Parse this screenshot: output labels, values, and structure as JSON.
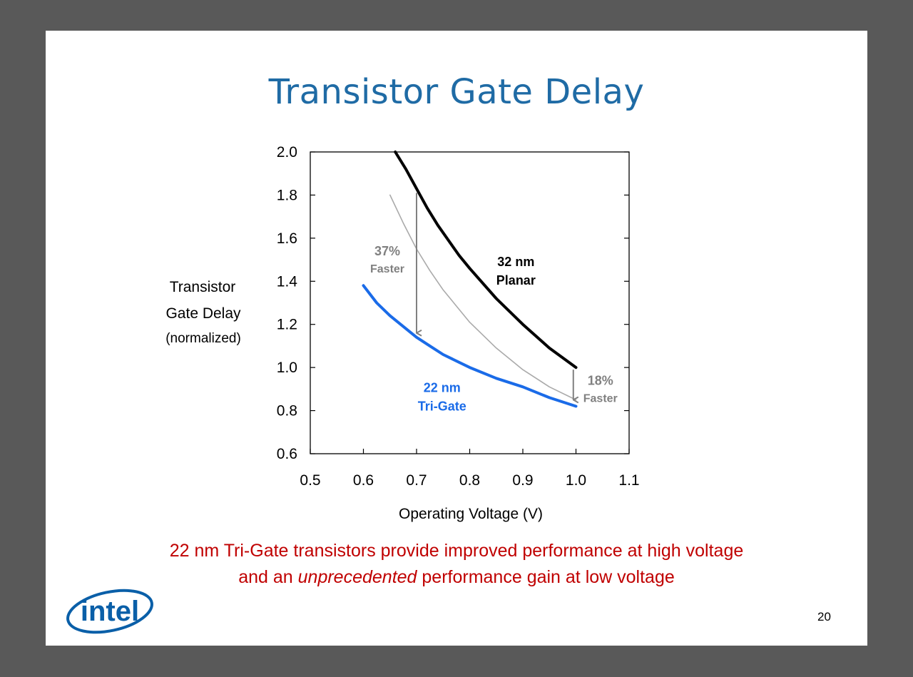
{
  "slide": {
    "title": "Transistor Gate Delay",
    "caption_line1": "22 nm Tri-Gate transistors provide improved performance at high voltage",
    "caption_line2_pre": "and an ",
    "caption_line2_em": "unprecedented",
    "caption_line2_post": " performance gain at low voltage",
    "page_number": "20",
    "logo_text": "intel"
  },
  "chart_data": {
    "type": "line",
    "ylabel_lines": [
      "Transistor",
      "Gate Delay",
      "(normalized)"
    ],
    "xlabel": "Operating Voltage (V)",
    "xlim": [
      0.5,
      1.1
    ],
    "ylim": [
      0.6,
      2.0
    ],
    "xticks": [
      "0.5",
      "0.6",
      "0.7",
      "0.8",
      "0.9",
      "1.0",
      "1.1"
    ],
    "yticks": [
      "0.6",
      "0.8",
      "1.0",
      "1.2",
      "1.4",
      "1.6",
      "1.8",
      "2.0"
    ],
    "grid": false,
    "series": [
      {
        "name_lines": [
          "32 nm",
          "Planar"
        ],
        "color": "#000000",
        "x": [
          0.66,
          0.68,
          0.7,
          0.72,
          0.74,
          0.76,
          0.78,
          0.8,
          0.85,
          0.9,
          0.95,
          1.0
        ],
        "y": [
          2.0,
          1.92,
          1.83,
          1.74,
          1.66,
          1.59,
          1.52,
          1.46,
          1.32,
          1.2,
          1.09,
          1.0
        ]
      },
      {
        "name_lines": [
          "22 nm",
          "Tri-Gate"
        ],
        "color": "#1a6be8",
        "x": [
          0.6,
          0.625,
          0.65,
          0.675,
          0.7,
          0.725,
          0.75,
          0.8,
          0.85,
          0.9,
          0.95,
          1.0
        ],
        "y": [
          1.38,
          1.3,
          1.24,
          1.19,
          1.14,
          1.1,
          1.06,
          1.0,
          0.95,
          0.91,
          0.86,
          0.82
        ]
      },
      {
        "color": "#aaaaaa",
        "x": [
          0.65,
          0.675,
          0.7,
          0.725,
          0.75,
          0.8,
          0.85,
          0.9,
          0.95,
          1.0
        ],
        "y": [
          1.8,
          1.67,
          1.55,
          1.45,
          1.36,
          1.21,
          1.09,
          0.99,
          0.91,
          0.85
        ]
      }
    ],
    "annotations": [
      {
        "lines": [
          "37%",
          "Faster"
        ],
        "x": 0.7,
        "y_from": 1.81,
        "y_to": 1.16,
        "color": "#808080"
      },
      {
        "lines": [
          "18%",
          "Faster"
        ],
        "x": 0.995,
        "y_from": 0.99,
        "y_to": 0.85,
        "color": "#808080"
      }
    ]
  }
}
